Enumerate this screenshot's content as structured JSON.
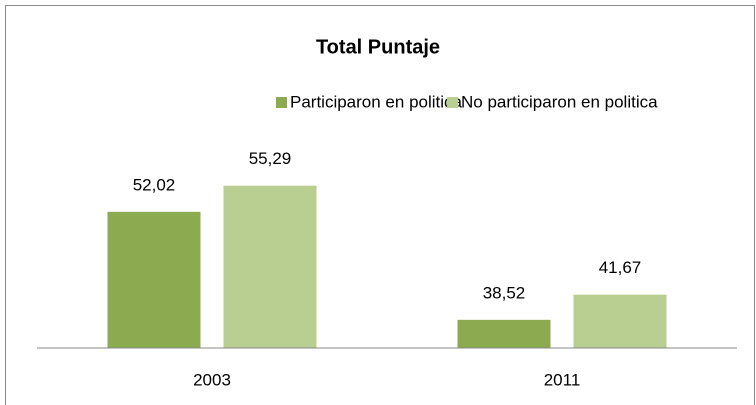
{
  "chart_data": {
    "type": "bar",
    "title": "Total Puntaje",
    "categories": [
      "2003",
      "2011"
    ],
    "series": [
      {
        "name": "Participaron en politica",
        "color": "#8cab50",
        "values": [
          52.02,
          38.52
        ],
        "value_labels": [
          "52,02",
          "38,52"
        ]
      },
      {
        "name": "No participaron en politica",
        "color": "#b9cf92",
        "values": [
          55.29,
          41.67
        ],
        "value_labels": [
          "55,29",
          "41,67"
        ]
      }
    ],
    "ylim": [
      35,
      60
    ]
  }
}
